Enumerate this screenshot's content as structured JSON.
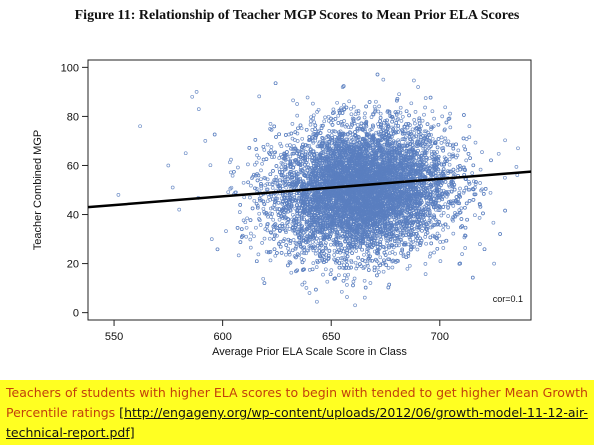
{
  "figure_title": "Figure 11: Relationship of Teacher MGP Scores to Mean Prior ELA Scores",
  "caption": {
    "text": "Teachers of students with higher ELA scores to begin with tended to get higher Mean Growth Percentile ratings ",
    "open_bracket": "[",
    "link": "http://engageny.org/wp-content/uploads/2012/06/growth-model-11-12-air-technical-report.pdf",
    "close_bracket": "]"
  },
  "chart_data": {
    "type": "scatter",
    "title": "Figure 11: Relationship of Teacher MGP Scores to Mean Prior ELA Scores",
    "xlabel": "Average Prior ELA Scale Score in Class",
    "ylabel": "Teacher Combined MGP",
    "xlim": [
      538,
      742
    ],
    "ylim": [
      -3,
      103
    ],
    "xticks": [
      550,
      600,
      650,
      700
    ],
    "yticks": [
      0,
      20,
      40,
      60,
      80,
      100
    ],
    "grid": false,
    "point_color": "#5b7fbf",
    "line_color": "#000000",
    "annotation": "cor=0.1",
    "fit_line": {
      "x": [
        538,
        742
      ],
      "y": [
        43,
        57.5
      ]
    },
    "points_summary": {
      "center_x": 664,
      "sd_x": 20,
      "center_y": 50,
      "sd_y": 13,
      "approx_count": 9000
    },
    "outlier_points": [
      {
        "x": 552,
        "y": 48
      },
      {
        "x": 562,
        "y": 76
      },
      {
        "x": 577,
        "y": 51
      },
      {
        "x": 583,
        "y": 65
      },
      {
        "x": 586,
        "y": 88
      },
      {
        "x": 589,
        "y": 83
      },
      {
        "x": 588,
        "y": 90
      },
      {
        "x": 575,
        "y": 60
      },
      {
        "x": 580,
        "y": 42
      },
      {
        "x": 592,
        "y": 70
      },
      {
        "x": 661,
        "y": 3
      },
      {
        "x": 674,
        "y": 95
      },
      {
        "x": 736,
        "y": 67
      },
      {
        "x": 725,
        "y": 20
      },
      {
        "x": 730,
        "y": 55
      },
      {
        "x": 595,
        "y": 30
      },
      {
        "x": 640,
        "y": 8
      },
      {
        "x": 690,
        "y": 92
      }
    ]
  }
}
